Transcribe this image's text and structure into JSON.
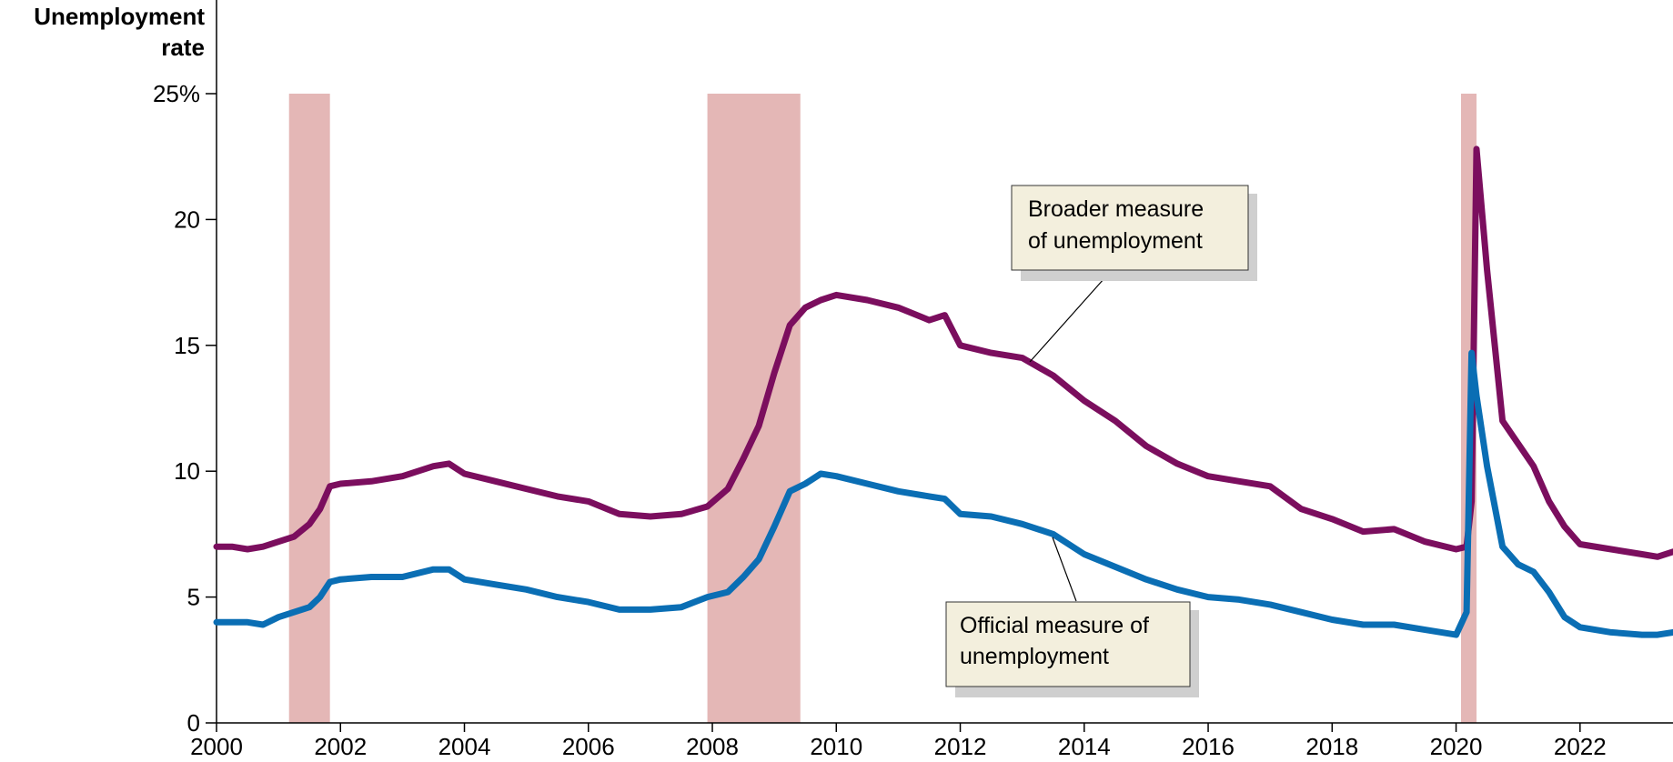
{
  "chart_data": {
    "type": "line",
    "ylabel_line1": "Unemployment",
    "ylabel_line2": "rate",
    "xlim": [
      2000,
      2023.5
    ],
    "ylim": [
      0,
      25
    ],
    "x_ticks": [
      2000,
      2002,
      2004,
      2006,
      2008,
      2010,
      2012,
      2014,
      2016,
      2018,
      2020,
      2022
    ],
    "x_tick_labels": [
      "2000",
      "2002",
      "2004",
      "2006",
      "2008",
      "2010",
      "2012",
      "2014",
      "2016",
      "2018",
      "2020",
      "2022"
    ],
    "y_ticks": [
      0,
      5,
      10,
      15,
      20,
      25
    ],
    "y_tick_labels": [
      "0",
      "5",
      "10",
      "15",
      "20",
      "25%"
    ],
    "recessions": [
      {
        "start": 2001.17,
        "end": 2001.83
      },
      {
        "start": 2007.92,
        "end": 2009.42
      },
      {
        "start": 2020.08,
        "end": 2020.33
      }
    ],
    "colors": {
      "broader": "#7b0e5e",
      "official": "#0a6eb4",
      "recession": "#e4b7b6",
      "box_fill": "#f3efdd"
    },
    "series": [
      {
        "key": "broader",
        "x": [
          2000.0,
          2000.25,
          2000.5,
          2000.75,
          2001.0,
          2001.25,
          2001.5,
          2001.67,
          2001.83,
          2002.0,
          2002.5,
          2003.0,
          2003.5,
          2003.75,
          2004.0,
          2004.5,
          2005.0,
          2005.5,
          2006.0,
          2006.5,
          2007.0,
          2007.5,
          2007.92,
          2008.25,
          2008.5,
          2008.75,
          2009.0,
          2009.25,
          2009.5,
          2009.75,
          2010.0,
          2010.5,
          2011.0,
          2011.5,
          2011.75,
          2012.0,
          2012.5,
          2013.0,
          2013.5,
          2014.0,
          2014.5,
          2015.0,
          2015.5,
          2016.0,
          2016.5,
          2017.0,
          2017.5,
          2018.0,
          2018.5,
          2019.0,
          2019.5,
          2020.0,
          2020.17,
          2020.25,
          2020.33,
          2020.5,
          2020.75,
          2021.0,
          2021.25,
          2021.5,
          2021.75,
          2022.0,
          2022.5,
          2023.0,
          2023.25,
          2023.5
        ],
        "y": [
          7.0,
          7.0,
          6.9,
          7.0,
          7.2,
          7.4,
          7.9,
          8.5,
          9.4,
          9.5,
          9.6,
          9.8,
          10.2,
          10.3,
          9.9,
          9.6,
          9.3,
          9.0,
          8.8,
          8.3,
          8.2,
          8.3,
          8.6,
          9.3,
          10.5,
          11.8,
          13.9,
          15.8,
          16.5,
          16.8,
          17.0,
          16.8,
          16.5,
          16.0,
          16.2,
          15.0,
          14.7,
          14.5,
          13.8,
          12.8,
          12.0,
          11.0,
          10.3,
          9.8,
          9.6,
          9.4,
          8.5,
          8.1,
          7.6,
          7.7,
          7.2,
          6.9,
          7.0,
          8.8,
          22.8,
          18.0,
          12.0,
          11.1,
          10.2,
          8.8,
          7.8,
          7.1,
          6.9,
          6.7,
          6.6,
          6.8
        ]
      },
      {
        "key": "official",
        "x": [
          2000.0,
          2000.25,
          2000.5,
          2000.75,
          2001.0,
          2001.25,
          2001.5,
          2001.67,
          2001.83,
          2002.0,
          2002.5,
          2003.0,
          2003.5,
          2003.75,
          2004.0,
          2004.5,
          2005.0,
          2005.5,
          2006.0,
          2006.5,
          2007.0,
          2007.5,
          2007.92,
          2008.25,
          2008.5,
          2008.75,
          2009.0,
          2009.25,
          2009.5,
          2009.75,
          2010.0,
          2010.5,
          2011.0,
          2011.5,
          2011.75,
          2012.0,
          2012.5,
          2013.0,
          2013.5,
          2014.0,
          2014.5,
          2015.0,
          2015.5,
          2016.0,
          2016.5,
          2017.0,
          2017.5,
          2018.0,
          2018.5,
          2019.0,
          2019.5,
          2020.0,
          2020.17,
          2020.25,
          2020.33,
          2020.5,
          2020.75,
          2021.0,
          2021.25,
          2021.5,
          2021.75,
          2022.0,
          2022.5,
          2023.0,
          2023.25,
          2023.5
        ],
        "y": [
          4.0,
          4.0,
          4.0,
          3.9,
          4.2,
          4.4,
          4.6,
          5.0,
          5.6,
          5.7,
          5.8,
          5.8,
          6.1,
          6.1,
          5.7,
          5.5,
          5.3,
          5.0,
          4.8,
          4.5,
          4.5,
          4.6,
          5.0,
          5.2,
          5.8,
          6.5,
          7.8,
          9.2,
          9.5,
          9.9,
          9.8,
          9.5,
          9.2,
          9.0,
          8.9,
          8.3,
          8.2,
          7.9,
          7.5,
          6.7,
          6.2,
          5.7,
          5.3,
          5.0,
          4.9,
          4.7,
          4.4,
          4.1,
          3.9,
          3.9,
          3.7,
          3.5,
          4.4,
          14.7,
          13.0,
          10.2,
          7.0,
          6.3,
          6.0,
          5.2,
          4.2,
          3.8,
          3.6,
          3.5,
          3.5,
          3.6
        ]
      }
    ],
    "annotations": {
      "broader_line1": "Broader measure",
      "broader_line2": "of unemployment",
      "official_line1": "Official measure of",
      "official_line2": "unemployment"
    }
  }
}
